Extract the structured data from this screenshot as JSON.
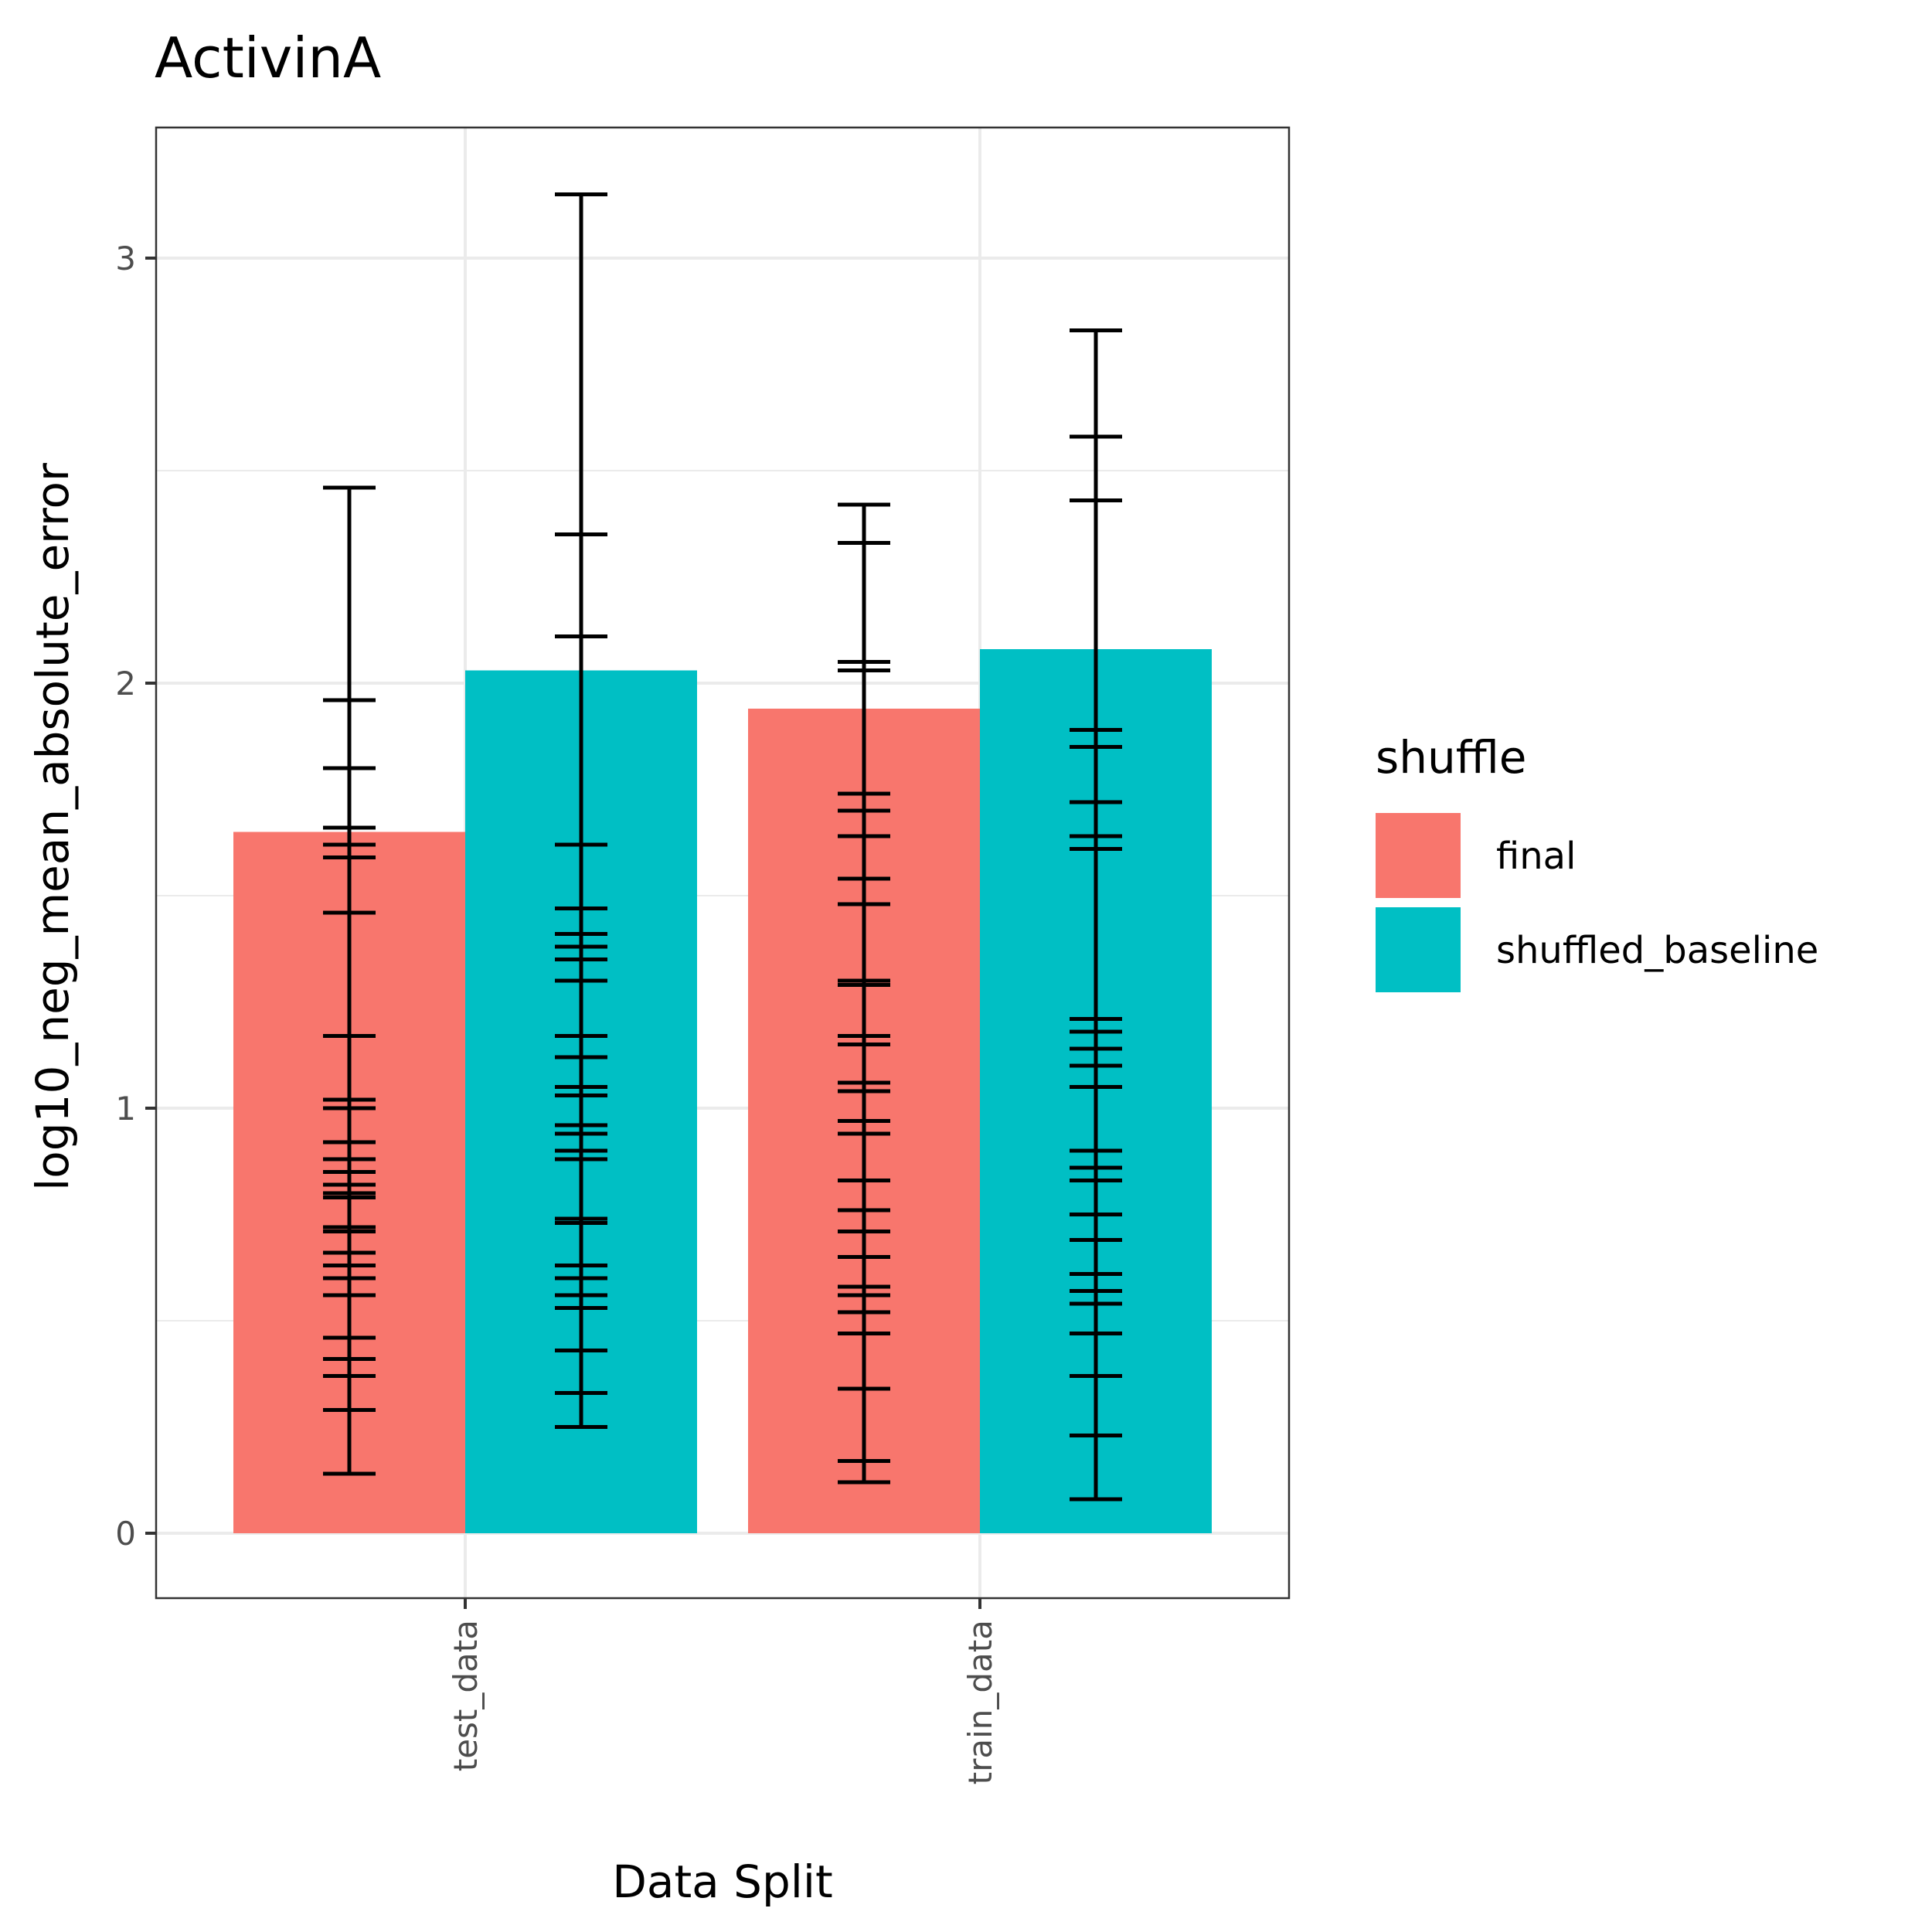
{
  "chart_data": {
    "type": "bar",
    "title": "ActivinA",
    "xlabel": "Data Split",
    "ylabel": "log10_neg_mean_absolute_error",
    "categories": [
      "test_data",
      "train_data"
    ],
    "ylim": [
      -0.15,
      3.3
    ],
    "yticks": [
      0,
      1,
      2,
      3
    ],
    "grid": true,
    "legend": {
      "title": "shuffle",
      "placement": "right",
      "entries": [
        {
          "label": "final",
          "color": "#F8766D"
        },
        {
          "label": "shuffled_baseline",
          "color": "#00BFC4"
        }
      ]
    },
    "series": [
      {
        "name": "final",
        "color": "#F8766D",
        "values": [
          1.65,
          1.94
        ],
        "error_bars": [
          {
            "low": [
              0.14,
              0.29,
              0.37,
              0.41,
              0.46,
              0.56,
              0.6,
              0.63,
              0.66,
              0.71,
              0.72,
              0.79,
              0.8,
              0.82,
              0.85,
              0.88,
              0.92,
              1.0,
              1.02,
              1.17,
              1.46,
              1.59,
              1.62,
              1.66,
              1.8,
              1.96
            ],
            "high": [
              2.46
            ]
          },
          {
            "low": [
              0.12,
              0.17,
              0.34,
              0.47,
              0.52,
              0.56,
              0.58,
              0.65,
              0.71,
              0.76,
              0.83,
              0.94,
              0.97,
              1.04,
              1.06,
              1.15,
              1.17,
              1.29,
              1.3,
              1.48,
              1.54,
              1.64,
              1.7,
              1.74,
              2.03,
              2.05,
              2.33
            ],
            "high": [
              2.42
            ]
          }
        ]
      },
      {
        "name": "shuffled_baseline",
        "color": "#00BFC4",
        "values": [
          2.03,
          2.08
        ],
        "error_bars": [
          {
            "low": [
              0.25,
              0.33,
              0.43,
              0.53,
              0.56,
              0.6,
              0.63,
              0.73,
              0.74,
              0.88,
              0.9,
              0.94,
              0.96,
              1.03,
              1.05,
              1.12,
              1.17,
              1.3,
              1.35,
              1.38,
              1.41,
              1.47,
              1.62,
              2.11,
              2.35
            ],
            "high": [
              3.15
            ]
          },
          {
            "low": [
              0.08,
              0.23,
              0.37,
              0.47,
              0.54,
              0.57,
              0.61,
              0.69,
              0.75,
              0.83,
              0.86,
              0.9,
              1.05,
              1.1,
              1.14,
              1.18,
              1.21,
              1.61,
              1.64,
              1.72,
              1.85,
              1.89,
              2.43,
              2.58
            ],
            "high": [
              2.83
            ]
          }
        ]
      }
    ]
  }
}
